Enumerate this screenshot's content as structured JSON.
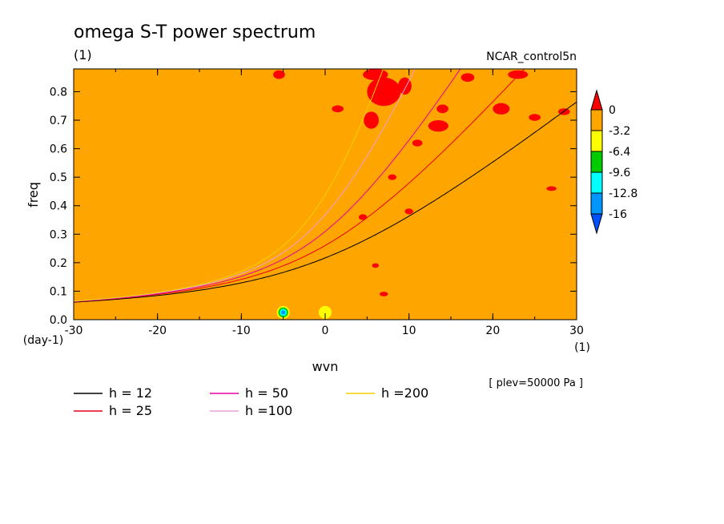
{
  "chart_data": {
    "type": "contour",
    "title": "omega S-T power spectrum",
    "units": "(1)",
    "experiment": "NCAR_control5n",
    "xlabel": "wvn",
    "xunit": "(1)",
    "ylabel": "freq",
    "yunit": "(day-1)",
    "xlim": [
      -30,
      30
    ],
    "ylim": [
      0.0,
      0.88
    ],
    "x_ticks": [
      "-30",
      "-20",
      "-10",
      "0",
      "10",
      "20",
      "30"
    ],
    "y_ticks": [
      "0.0",
      "0.1",
      "0.2",
      "0.3",
      "0.4",
      "0.5",
      "0.6",
      "0.7",
      "0.8"
    ],
    "note": "[ plev=50000 Pa ]",
    "background_level_color": "#ffa500",
    "colorbar": {
      "levels": [
        "0",
        "-3.2",
        "-6.4",
        "-9.6",
        "-12.8",
        "-16"
      ],
      "colors": [
        "#ff0000",
        "#ffa500",
        "#ffff00",
        "#00cc00",
        "#00ffff",
        "#0096ff",
        "#0050ff"
      ]
    },
    "dispersion_curves": [
      {
        "name": "h = 12",
        "h": 12,
        "color": "#000000"
      },
      {
        "name": "h = 25",
        "h": 25,
        "color": "#e8001a"
      },
      {
        "name": "h = 50",
        "h": 50,
        "color": "#e8009e"
      },
      {
        "name": "h =100",
        "h": 100,
        "color": "#e8a0d8"
      },
      {
        "name": "h =200",
        "h": 200,
        "color": "#f0d000"
      }
    ],
    "red_patches": [
      {
        "x": 7.0,
        "y": 0.8,
        "rx": 2.0,
        "ry": 0.05
      },
      {
        "x": 5.5,
        "y": 0.7,
        "rx": 0.9,
        "ry": 0.03
      },
      {
        "x": 9.5,
        "y": 0.82,
        "rx": 0.8,
        "ry": 0.03
      },
      {
        "x": 13.5,
        "y": 0.68,
        "rx": 1.2,
        "ry": 0.02
      },
      {
        "x": 6.0,
        "y": 0.86,
        "rx": 1.5,
        "ry": 0.02
      },
      {
        "x": 17.0,
        "y": 0.85,
        "rx": 0.8,
        "ry": 0.015
      },
      {
        "x": 23.0,
        "y": 0.86,
        "rx": 1.2,
        "ry": 0.015
      },
      {
        "x": 21.0,
        "y": 0.74,
        "rx": 1.0,
        "ry": 0.02
      },
      {
        "x": 14.0,
        "y": 0.74,
        "rx": 0.7,
        "ry": 0.015
      },
      {
        "x": 11.0,
        "y": 0.62,
        "rx": 0.6,
        "ry": 0.012
      },
      {
        "x": 1.5,
        "y": 0.74,
        "rx": 0.7,
        "ry": 0.012
      },
      {
        "x": -5.5,
        "y": 0.86,
        "rx": 0.7,
        "ry": 0.015
      },
      {
        "x": 25.0,
        "y": 0.71,
        "rx": 0.7,
        "ry": 0.012
      },
      {
        "x": 28.5,
        "y": 0.73,
        "rx": 0.7,
        "ry": 0.012
      },
      {
        "x": 27.0,
        "y": 0.46,
        "rx": 0.6,
        "ry": 0.008
      },
      {
        "x": 8.0,
        "y": 0.5,
        "rx": 0.5,
        "ry": 0.01
      },
      {
        "x": 4.5,
        "y": 0.36,
        "rx": 0.5,
        "ry": 0.01
      },
      {
        "x": 7.0,
        "y": 0.09,
        "rx": 0.5,
        "ry": 0.008
      },
      {
        "x": 10.0,
        "y": 0.38,
        "rx": 0.5,
        "ry": 0.01
      },
      {
        "x": 6.0,
        "y": 0.19,
        "rx": 0.4,
        "ry": 0.008
      }
    ],
    "low_spots": [
      {
        "x": -5.0,
        "y": 0.02,
        "ring_colors": [
          "#ffff00",
          "#00cc00",
          "#00ffff",
          "#0096ff"
        ]
      },
      {
        "x": 0.0,
        "y": 0.02,
        "ring_colors": [
          "#ffff00"
        ]
      }
    ]
  }
}
